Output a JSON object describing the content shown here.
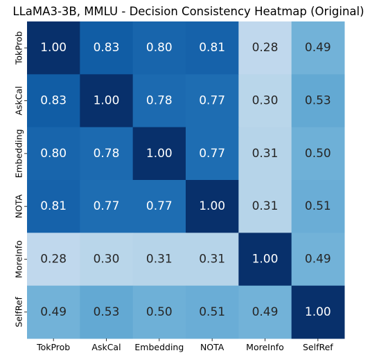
{
  "chart_data": {
    "type": "heatmap",
    "title": "LLaMA3-3B, MMLU - Decision Consistency Heatmap (Original)",
    "xlabels": [
      "TokProb",
      "AskCal",
      "Embedding",
      "NOTA",
      "MoreInfo",
      "SelfRef"
    ],
    "ylabels": [
      "TokProb",
      "AskCal",
      "Embedding",
      "NOTA",
      "MoreInfo",
      "SelfRef"
    ],
    "values": [
      [
        1.0,
        0.83,
        0.8,
        0.81,
        0.28,
        0.49
      ],
      [
        0.83,
        1.0,
        0.78,
        0.77,
        0.3,
        0.53
      ],
      [
        0.8,
        0.78,
        1.0,
        0.77,
        0.31,
        0.5
      ],
      [
        0.81,
        0.77,
        0.77,
        1.0,
        0.31,
        0.51
      ],
      [
        0.28,
        0.3,
        0.31,
        0.31,
        1.0,
        0.49
      ],
      [
        0.49,
        0.53,
        0.5,
        0.51,
        0.49,
        1.0
      ]
    ],
    "colormap": "Blues",
    "value_range": [
      0.28,
      1.0
    ],
    "annotation_format": "2 decimals",
    "colorbar": false
  }
}
